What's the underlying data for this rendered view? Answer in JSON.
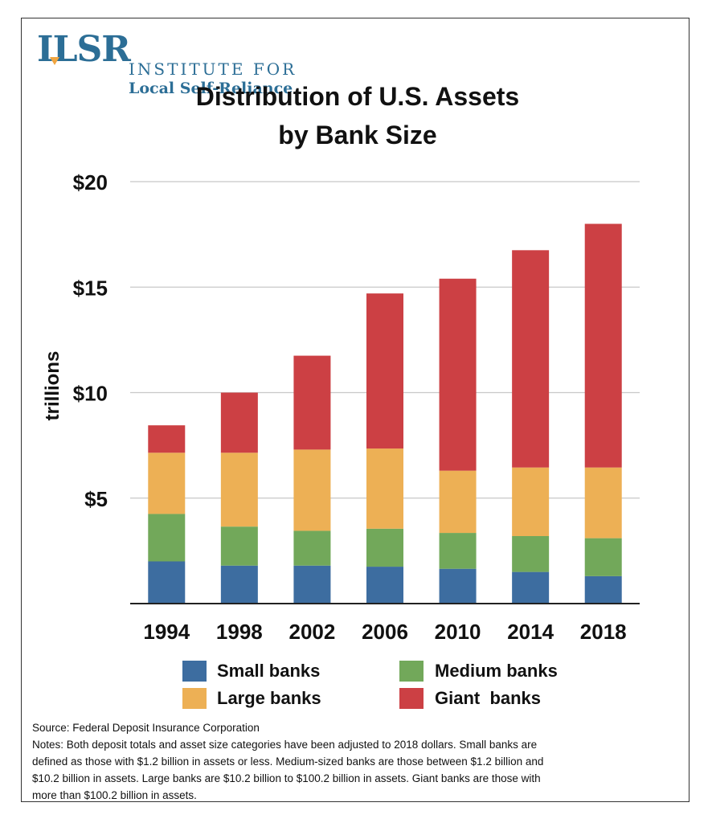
{
  "logo": {
    "mark": "ILSR",
    "line1": "INSTITUTE FOR",
    "line2": "Local Self-Reliance"
  },
  "colors": {
    "small": "#3d6da0",
    "medium": "#72a85a",
    "large": "#edb055",
    "giant": "#cc4044",
    "brand": "#2c6e96"
  },
  "chart_data": {
    "type": "bar",
    "stacked": true,
    "title": "Distribution of U.S. Assets by Bank Size",
    "title_lines": [
      "Distribution of U.S. Assets",
      "by Bank Size"
    ],
    "ylabel": "trillions",
    "xlabel": "",
    "ylim": [
      0,
      20
    ],
    "yticks": [
      5,
      10,
      15,
      20
    ],
    "ytick_labels": [
      "$5",
      "$10",
      "$15",
      "$20"
    ],
    "grid": true,
    "categories": [
      "1994",
      "1998",
      "2002",
      "2006",
      "2010",
      "2014",
      "2018"
    ],
    "series": [
      {
        "name": "Small banks",
        "values": [
          2.0,
          1.8,
          1.8,
          1.75,
          1.65,
          1.5,
          1.3
        ]
      },
      {
        "name": "Medium banks",
        "values": [
          2.25,
          1.85,
          1.65,
          1.8,
          1.7,
          1.7,
          1.8
        ]
      },
      {
        "name": "Large banks",
        "values": [
          2.9,
          3.5,
          3.85,
          3.8,
          2.95,
          3.25,
          3.35
        ]
      },
      {
        "name": "Giant banks",
        "values": [
          1.3,
          2.85,
          4.45,
          7.35,
          9.1,
          10.3,
          11.55
        ]
      }
    ],
    "legend": {
      "placement": "bottom",
      "items": [
        "Small banks",
        "Medium banks",
        "Large banks",
        "Giant  banks"
      ]
    }
  },
  "notes": {
    "source": "Source: Federal Deposit Insurance Corporation",
    "lines": [
      "Notes: Both deposit totals and asset size categories have been adjusted to 2018 dollars.  Small banks are",
      "defined as those with $1.2 billion in assets or less.  Medium-sized banks are those between $1.2 billion and",
      "$10.2 billion in assets.  Large banks are $10.2 billion to $100.2 billion in assets.  Giant banks are those with",
      "more than $100.2 billion in assets."
    ]
  }
}
